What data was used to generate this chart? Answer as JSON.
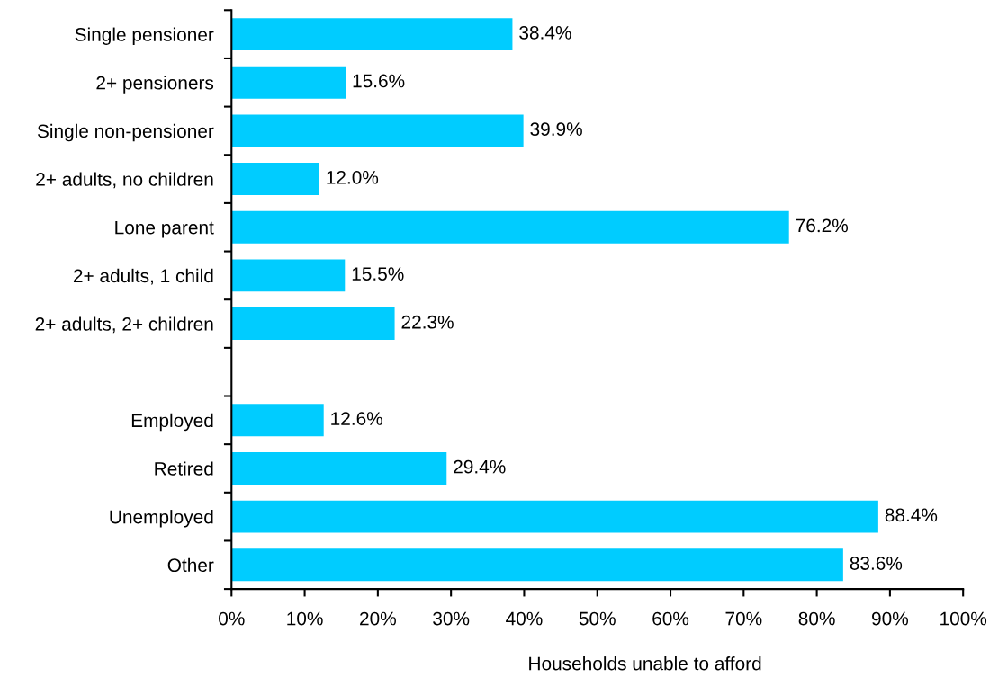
{
  "chart_data": {
    "type": "bar",
    "orientation": "horizontal",
    "xlabel": "Households unable to afford",
    "categories": [
      "Single pensioner",
      "2+ pensioners",
      "Single non-pensioner",
      "2+ adults, no children",
      "Lone parent",
      "2+ adults, 1 child",
      "2+ adults, 2+ children",
      null,
      "Employed",
      "Retired",
      "Unemployed",
      "Other"
    ],
    "values": [
      38.4,
      15.6,
      39.9,
      12.0,
      76.2,
      15.5,
      22.3,
      null,
      12.6,
      29.4,
      88.4,
      83.6
    ],
    "value_labels": [
      "38.4%",
      "15.6%",
      "39.9%",
      "12.0%",
      "76.2%",
      "15.5%",
      "22.3%",
      null,
      "12.6%",
      "29.4%",
      "88.4%",
      "83.6%"
    ],
    "color": "#00ccff",
    "xlim": [
      0,
      100
    ],
    "xticks": [
      {
        "value": 0,
        "label": "0%"
      },
      {
        "value": 10,
        "label": "10%"
      },
      {
        "value": 20,
        "label": "20%"
      },
      {
        "value": 30,
        "label": "30%"
      },
      {
        "value": 40,
        "label": "40%"
      },
      {
        "value": 50,
        "label": "50%"
      },
      {
        "value": 60,
        "label": "60%"
      },
      {
        "value": 70,
        "label": "70%"
      },
      {
        "value": 80,
        "label": "80%"
      },
      {
        "value": 90,
        "label": "90%"
      },
      {
        "value": 100,
        "label": "100%"
      }
    ],
    "grid": false,
    "legend": false
  }
}
